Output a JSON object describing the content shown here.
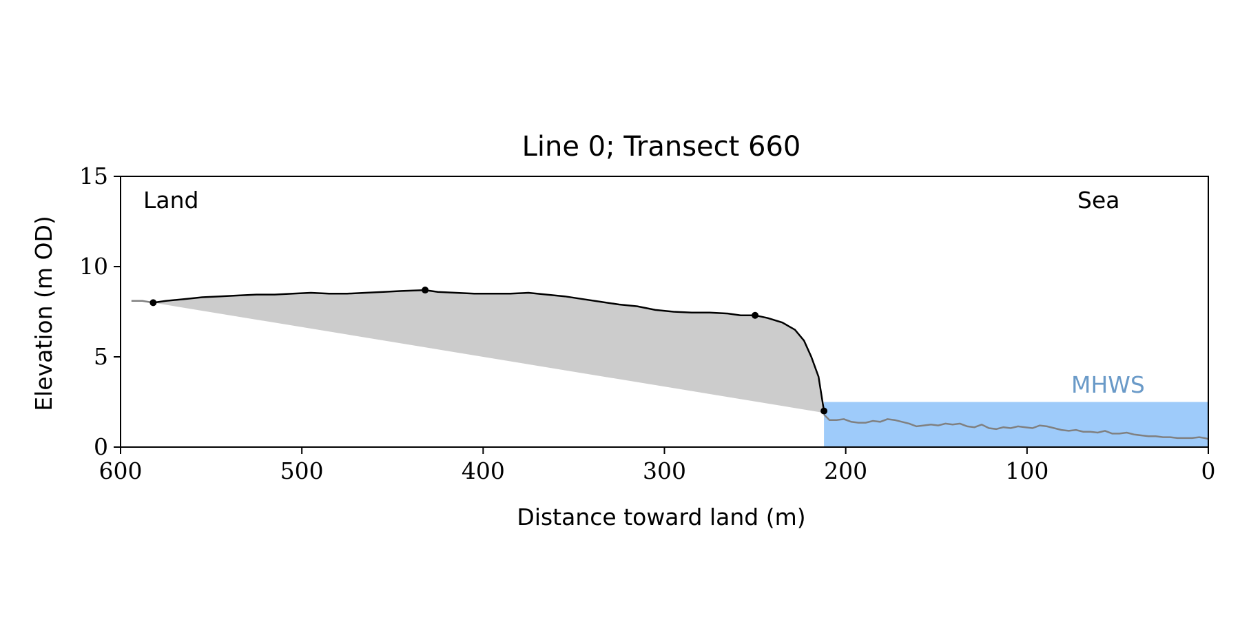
{
  "chart_data": {
    "type": "area",
    "title": "Line 0; Transect 660",
    "xlabel": "Distance toward land (m)",
    "ylabel": "Elevation (m OD)",
    "xlim": [
      600,
      0
    ],
    "ylim": [
      0,
      15
    ],
    "x_ticks": [
      600,
      500,
      400,
      300,
      200,
      100,
      0
    ],
    "y_ticks": [
      0,
      5,
      10,
      15
    ],
    "grid": false,
    "annotations": {
      "land_label": "Land",
      "sea_label": "Sea",
      "mhws_label": "MHWS"
    },
    "mhws": {
      "elevation": 2.5,
      "x_range": [
        212,
        0
      ],
      "color": "#9ecbfa",
      "label_color": "#6a9ac8"
    },
    "grey_profile": {
      "color": "#808080",
      "points": [
        [
          594,
          8.1
        ],
        [
          588,
          8.1
        ],
        [
          582,
          8.0
        ],
        [
          212,
          1.8
        ],
        [
          209,
          1.5
        ],
        [
          205,
          1.5
        ],
        [
          201,
          1.55
        ],
        [
          197,
          1.4
        ],
        [
          193,
          1.35
        ],
        [
          189,
          1.35
        ],
        [
          185,
          1.45
        ],
        [
          181,
          1.4
        ],
        [
          177,
          1.55
        ],
        [
          173,
          1.5
        ],
        [
          169,
          1.4
        ],
        [
          165,
          1.3
        ],
        [
          161,
          1.15
        ],
        [
          157,
          1.2
        ],
        [
          153,
          1.25
        ],
        [
          149,
          1.2
        ],
        [
          145,
          1.3
        ],
        [
          141,
          1.25
        ],
        [
          137,
          1.3
        ],
        [
          133,
          1.15
        ],
        [
          129,
          1.1
        ],
        [
          125,
          1.25
        ],
        [
          121,
          1.05
        ],
        [
          117,
          1.0
        ],
        [
          113,
          1.1
        ],
        [
          109,
          1.05
        ],
        [
          105,
          1.15
        ],
        [
          101,
          1.1
        ],
        [
          97,
          1.05
        ],
        [
          93,
          1.2
        ],
        [
          89,
          1.15
        ],
        [
          85,
          1.05
        ],
        [
          81,
          0.95
        ],
        [
          77,
          0.9
        ],
        [
          73,
          0.95
        ],
        [
          69,
          0.85
        ],
        [
          65,
          0.85
        ],
        [
          61,
          0.8
        ],
        [
          57,
          0.9
        ],
        [
          53,
          0.75
        ],
        [
          49,
          0.75
        ],
        [
          45,
          0.8
        ],
        [
          41,
          0.7
        ],
        [
          37,
          0.65
        ],
        [
          33,
          0.6
        ],
        [
          29,
          0.6
        ],
        [
          25,
          0.55
        ],
        [
          21,
          0.55
        ],
        [
          17,
          0.5
        ],
        [
          13,
          0.5
        ],
        [
          9,
          0.5
        ],
        [
          5,
          0.55
        ],
        [
          2,
          0.5
        ],
        [
          0,
          0.45
        ]
      ]
    },
    "black_profile": {
      "color": "#000000",
      "points": [
        [
          582,
          8.0
        ],
        [
          575,
          8.1
        ],
        [
          565,
          8.2
        ],
        [
          555,
          8.3
        ],
        [
          545,
          8.35
        ],
        [
          535,
          8.4
        ],
        [
          525,
          8.45
        ],
        [
          515,
          8.45
        ],
        [
          505,
          8.5
        ],
        [
          495,
          8.55
        ],
        [
          485,
          8.5
        ],
        [
          475,
          8.5
        ],
        [
          465,
          8.55
        ],
        [
          455,
          8.6
        ],
        [
          445,
          8.65
        ],
        [
          432,
          8.7
        ],
        [
          425,
          8.6
        ],
        [
          415,
          8.55
        ],
        [
          405,
          8.5
        ],
        [
          395,
          8.5
        ],
        [
          385,
          8.5
        ],
        [
          375,
          8.55
        ],
        [
          365,
          8.45
        ],
        [
          355,
          8.35
        ],
        [
          345,
          8.2
        ],
        [
          335,
          8.05
        ],
        [
          325,
          7.9
        ],
        [
          315,
          7.8
        ],
        [
          305,
          7.6
        ],
        [
          295,
          7.5
        ],
        [
          285,
          7.45
        ],
        [
          275,
          7.45
        ],
        [
          265,
          7.4
        ],
        [
          258,
          7.3
        ],
        [
          250,
          7.3
        ],
        [
          243,
          7.15
        ],
        [
          235,
          6.9
        ],
        [
          228,
          6.5
        ],
        [
          223,
          5.9
        ],
        [
          219,
          5.0
        ],
        [
          215,
          3.9
        ],
        [
          212,
          2.0
        ]
      ]
    },
    "fill_region": {
      "color": "#cccccc",
      "base_line": [
        [
          582,
          8.0
        ],
        [
          212,
          1.9
        ]
      ]
    },
    "marked_points": [
      [
        582,
        8.0
      ],
      [
        432,
        8.7
      ],
      [
        250,
        7.3
      ],
      [
        212,
        2.0
      ]
    ]
  }
}
